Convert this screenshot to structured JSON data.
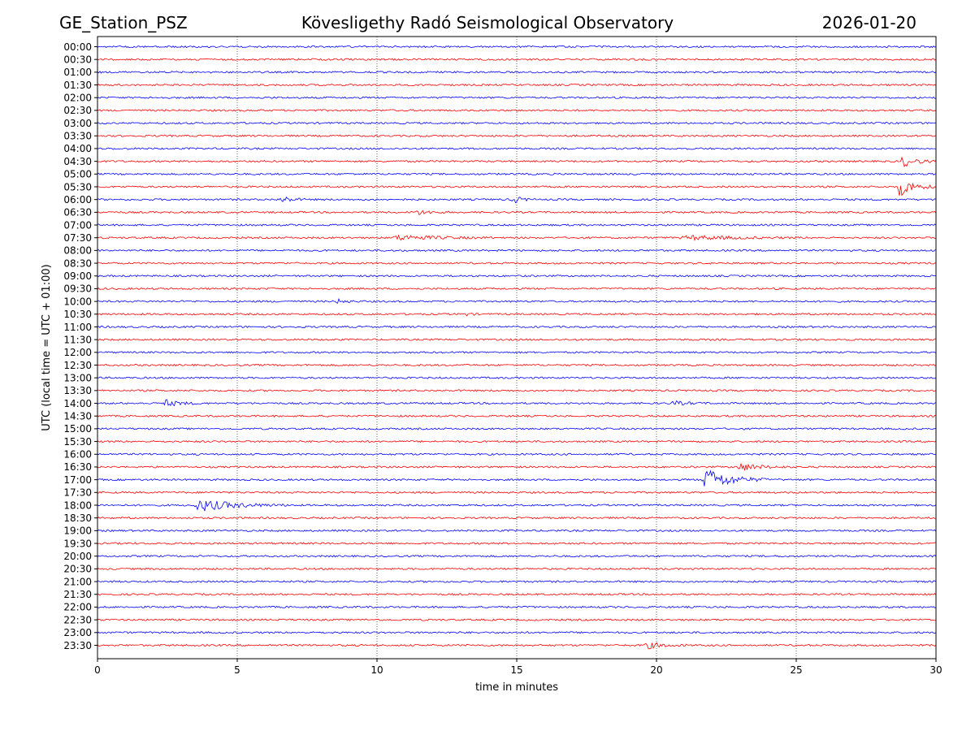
{
  "header": {
    "station": "GE_Station_PSZ",
    "observatory": "Kövesligethy Radó Seismological Observatory",
    "date": "2026-01-20"
  },
  "chart_data": {
    "type": "line",
    "title": "Kövesligethy Radó Seismological Observatory",
    "xlabel": "time in minutes",
    "ylabel": "UTC (local time = UTC + 01:00)",
    "xlim": [
      0,
      30
    ],
    "xticks": [
      0,
      5,
      10,
      15,
      20,
      25,
      30
    ],
    "grid": "vertical dotted at x ticks",
    "series_colors": [
      "#0000ff",
      "#ff0000"
    ],
    "rows": [
      "00:00",
      "00:30",
      "01:00",
      "01:30",
      "02:00",
      "02:30",
      "03:00",
      "03:30",
      "04:00",
      "04:30",
      "05:00",
      "05:30",
      "06:00",
      "06:30",
      "07:00",
      "07:30",
      "08:00",
      "08:30",
      "09:00",
      "09:30",
      "10:00",
      "10:30",
      "11:00",
      "11:30",
      "12:00",
      "12:30",
      "13:00",
      "13:30",
      "14:00",
      "14:30",
      "15:00",
      "15:30",
      "16:00",
      "16:30",
      "17:00",
      "17:30",
      "18:00",
      "18:30",
      "19:00",
      "19:30",
      "20:00",
      "20:30",
      "21:00",
      "21:30",
      "22:00",
      "22:30",
      "23:00",
      "23:30"
    ],
    "events": [
      {
        "row": "04:30",
        "start_min": 28.7,
        "end_min": 30.0,
        "amplitude": 7
      },
      {
        "row": "05:30",
        "start_min": 28.6,
        "end_min": 30.0,
        "amplitude": 12
      },
      {
        "row": "06:00",
        "start_min": 6.5,
        "end_min": 7.6,
        "amplitude": 4
      },
      {
        "row": "06:00",
        "start_min": 14.8,
        "end_min": 15.6,
        "amplitude": 5
      },
      {
        "row": "06:30",
        "start_min": 11.3,
        "end_min": 12.6,
        "amplitude": 3
      },
      {
        "row": "07:30",
        "start_min": 10.5,
        "end_min": 14.5,
        "amplitude": 3
      },
      {
        "row": "07:30",
        "start_min": 20.8,
        "end_min": 25.5,
        "amplitude": 2.5
      },
      {
        "row": "10:00",
        "start_min": 8.5,
        "end_min": 9.5,
        "amplitude": 2.5
      },
      {
        "row": "10:30",
        "start_min": 13.2,
        "end_min": 13.6,
        "amplitude": 3
      },
      {
        "row": "14:00",
        "start_min": 2.3,
        "end_min": 3.8,
        "amplitude": 4
      },
      {
        "row": "14:00",
        "start_min": 20.5,
        "end_min": 22.0,
        "amplitude": 2.5
      },
      {
        "row": "16:30",
        "start_min": 22.8,
        "end_min": 24.8,
        "amplitude": 5
      },
      {
        "row": "17:00",
        "start_min": 21.6,
        "end_min": 24.0,
        "amplitude": 14
      },
      {
        "row": "18:00",
        "start_min": 3.4,
        "end_min": 7.0,
        "amplitude": 7
      },
      {
        "row": "23:30",
        "start_min": 19.5,
        "end_min": 21.2,
        "amplitude": 4
      }
    ]
  }
}
